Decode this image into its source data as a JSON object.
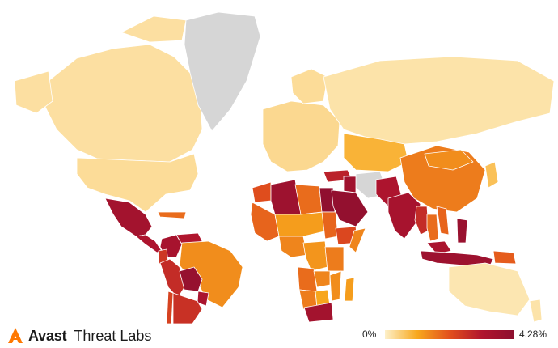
{
  "brand": {
    "name": "Avast",
    "sub": "Threat Labs",
    "icon": "avast-logo-icon",
    "color": "#ff7800"
  },
  "legend": {
    "min_label": "0%",
    "max_label": "4.28%",
    "min_value": 0,
    "max_value": 4.28,
    "unit": "%",
    "gradient": [
      "#fdf0c9",
      "#f8a81c",
      "#e2501c",
      "#b0152e",
      "#8d0f2f"
    ]
  },
  "colors": {
    "no_data": "#d6d6d6",
    "ocean": "#ffffff",
    "border": "#ffffff"
  },
  "regions": [
    {
      "name": "Canada",
      "value": 0.25
    },
    {
      "name": "United States",
      "value": 0.3
    },
    {
      "name": "Alaska",
      "value": 0.25
    },
    {
      "name": "Greenland",
      "value": null
    },
    {
      "name": "Mexico",
      "value": 3.6
    },
    {
      "name": "Central America",
      "value": 3.3
    },
    {
      "name": "Caribbean",
      "value": 1.8
    },
    {
      "name": "Colombia",
      "value": 3.5
    },
    {
      "name": "Venezuela",
      "value": 3.2
    },
    {
      "name": "Ecuador",
      "value": 2.6
    },
    {
      "name": "Peru",
      "value": 2.8
    },
    {
      "name": "Brazil",
      "value": 1.4
    },
    {
      "name": "Bolivia",
      "value": 4.0
    },
    {
      "name": "Paraguay",
      "value": 3.4
    },
    {
      "name": "Chile",
      "value": 2.4
    },
    {
      "name": "Argentina",
      "value": 2.7
    },
    {
      "name": "Europe",
      "value": 0.35
    },
    {
      "name": "Scandinavia",
      "value": 0.3
    },
    {
      "name": "Russia",
      "value": 0.2
    },
    {
      "name": "Turkey",
      "value": 3.0
    },
    {
      "name": "Iran",
      "value": null
    },
    {
      "name": "Central Asia",
      "value": 0.9
    },
    {
      "name": "Morocco",
      "value": 2.2
    },
    {
      "name": "Algeria",
      "value": 3.8
    },
    {
      "name": "Libya",
      "value": 1.8
    },
    {
      "name": "Egypt",
      "value": 4.2
    },
    {
      "name": "Saudi Arabia",
      "value": 4.1
    },
    {
      "name": "Iraq",
      "value": 3.7
    },
    {
      "name": "Pakistan",
      "value": 3.3
    },
    {
      "name": "India",
      "value": 3.5
    },
    {
      "name": "China",
      "value": 1.6
    },
    {
      "name": "Mongolia",
      "value": 1.4
    },
    {
      "name": "Japan",
      "value": 0.7
    },
    {
      "name": "Myanmar",
      "value": 2.8
    },
    {
      "name": "Thailand",
      "value": 1.8
    },
    {
      "name": "Vietnam",
      "value": 1.9
    },
    {
      "name": "Philippines",
      "value": 3.9
    },
    {
      "name": "Malaysia",
      "value": 3.4
    },
    {
      "name": "Indonesia",
      "value": 3.8
    },
    {
      "name": "Papua New Guinea",
      "value": 2.0
    },
    {
      "name": "Australia",
      "value": 0.15
    },
    {
      "name": "New Zealand",
      "value": 0.2
    },
    {
      "name": "West Africa",
      "value": 1.9
    },
    {
      "name": "Sahel",
      "value": 1.2
    },
    {
      "name": "Sudan",
      "value": 1.9
    },
    {
      "name": "Ethiopia",
      "value": 2.3
    },
    {
      "name": "Somalia",
      "value": 1.5
    },
    {
      "name": "Central Africa",
      "value": 1.5
    },
    {
      "name": "DR Congo",
      "value": 1.3
    },
    {
      "name": "Tanzania",
      "value": 1.6
    },
    {
      "name": "Angola",
      "value": 1.8
    },
    {
      "name": "Zambia",
      "value": 1.5
    },
    {
      "name": "Namibia",
      "value": 1.6
    },
    {
      "name": "Botswana",
      "value": 1.1
    },
    {
      "name": "Mozambique",
      "value": 1.4
    },
    {
      "name": "South Africa",
      "value": 3.6
    },
    {
      "name": "Madagascar",
      "value": 1.2
    }
  ]
}
